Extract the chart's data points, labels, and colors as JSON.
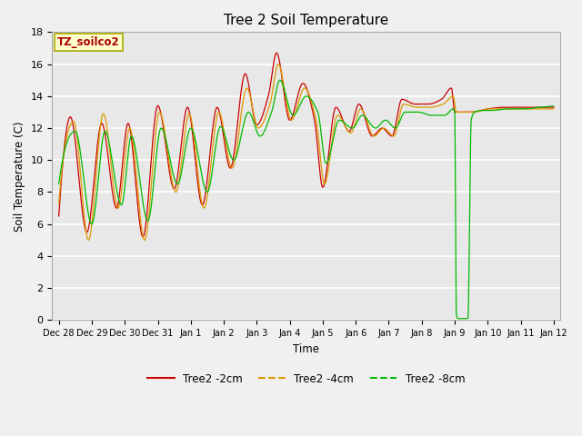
{
  "title": "Tree 2 Soil Temperature",
  "ylabel": "Soil Temperature (C)",
  "xlabel": "Time",
  "annotation": "TZ_soilco2",
  "ylim": [
    0,
    18
  ],
  "x_tick_labels": [
    "Dec 28",
    "Dec 29",
    "Dec 30",
    "Dec 31",
    "Jan 1",
    "Jan 2",
    "Jan 3",
    "Jan 4",
    "Jan 5",
    "Jan 6",
    "Jan 7",
    "Jan 8",
    "Jan 9",
    "Jan 10",
    "Jan 11",
    "Jan 12"
  ],
  "fig_bg": "#f0f0f0",
  "ax_bg": "#e8e8e8",
  "line_2cm_color": "#cc0000",
  "line_4cm_color": "#dd9900",
  "line_8cm_color": "#00bb00",
  "legend_labels": [
    "Tree2 -2cm",
    "Tree2 -4cm",
    "Tree2 -8cm"
  ],
  "yticks": [
    0,
    2,
    4,
    6,
    8,
    10,
    12,
    14,
    16,
    18
  ],
  "annotation_color": "#aa0000",
  "annotation_bg": "#ffffcc",
  "annotation_edge": "#aaaa00"
}
